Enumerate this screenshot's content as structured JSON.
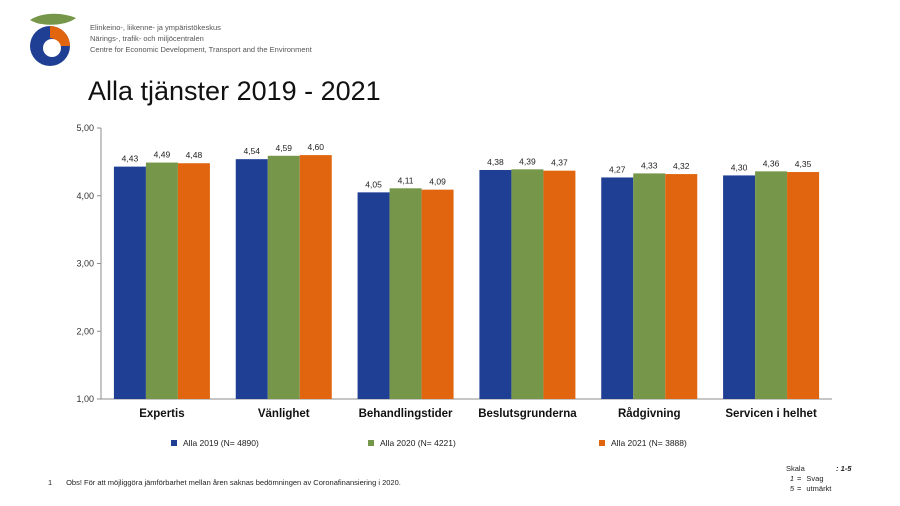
{
  "header": {
    "org_lines": [
      "Elinkeino-, liikenne- ja ympäristökeskus",
      "Närings-, trafik- och miljöcentralen",
      "Centre for Economic Development, Transport and the Environment"
    ]
  },
  "title": "Alla tjänster 2019 - 2021",
  "colors": {
    "s2019": "#1f3f94",
    "s2020": "#76974a",
    "s2021": "#e0650e"
  },
  "chart_data": {
    "type": "bar",
    "title": "Alla tjänster 2019 - 2021",
    "categories": [
      "Expertis",
      "Vänlighet",
      "Behandlingstider",
      "Beslutsgrunderna",
      "Rådgivning",
      "Servicen i helhet"
    ],
    "series": [
      {
        "name": "Alla 2019 (N= 4890)",
        "color": "#1f3f94",
        "values": [
          4.43,
          4.54,
          4.05,
          4.38,
          4.27,
          4.3
        ],
        "labels": [
          "4,43",
          "4,54",
          "4,05",
          "4,38",
          "4,27",
          "4,30"
        ]
      },
      {
        "name": "Alla 2020 (N= 4221)",
        "color": "#76974a",
        "values": [
          4.49,
          4.59,
          4.11,
          4.39,
          4.33,
          4.36
        ],
        "labels": [
          "4,49",
          "4,59",
          "4,11",
          "4,39",
          "4,33",
          "4,36"
        ]
      },
      {
        "name": "Alla 2021 (N= 3888)",
        "color": "#e0650e",
        "values": [
          4.48,
          4.6,
          4.09,
          4.37,
          4.32,
          4.35
        ],
        "labels": [
          "4,48",
          "4,60",
          "4,09",
          "4,37",
          "4,32",
          "4,35"
        ]
      }
    ],
    "ylim": [
      1,
      5
    ],
    "yticks": [
      1,
      2,
      3,
      4,
      5
    ],
    "ytick_labels": [
      "1,00",
      "2,00",
      "3,00",
      "4,00",
      "5,00"
    ],
    "grid": false,
    "legend": "bottom"
  },
  "footnote": {
    "number": "1",
    "text": "Obs! För att möjliggöra jämförbarhet mellan åren saknas bedömningen av Coronafinansiering i 2020."
  },
  "scale": {
    "label": "Skala",
    "range": ": 1-5",
    "items": [
      {
        "key": "1",
        "eq": "=",
        "text": "Svag"
      },
      {
        "key": "5",
        "eq": "=",
        "text": "utmärkt"
      }
    ]
  }
}
